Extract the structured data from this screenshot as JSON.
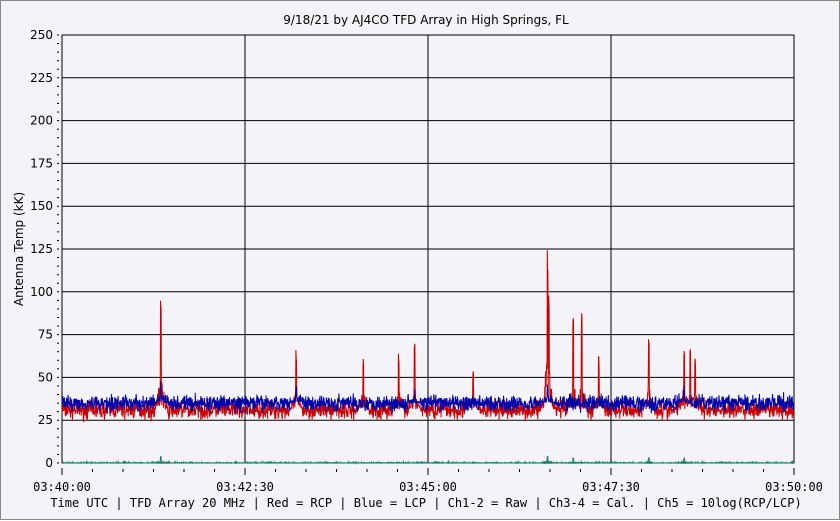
{
  "chart_data": {
    "type": "line",
    "title": "9/18/21  by  AJ4CO TFD Array  in  High Springs, FL",
    "xlabel": "Time UTC | TFD Array 20 MHz | Red = RCP | Blue = LCP | Ch1-2 = Raw | Ch3-4 = Cal. | Ch5 = 10log(RCP/LCP)",
    "ylabel": "Antenna Temp (kK)",
    "ylim": [
      0,
      250
    ],
    "yticks": [
      "0",
      "25",
      "50",
      "75",
      "100",
      "125",
      "150",
      "175",
      "200",
      "225",
      "250"
    ],
    "xlim_seconds": [
      0,
      600
    ],
    "xticks": [
      "03:40:00",
      "03:42:30",
      "03:45:00",
      "03:47:30",
      "03:50:00"
    ],
    "grid": true,
    "series": [
      {
        "name": "RCP",
        "color": "#cc0000",
        "baseline": 31,
        "noise": 4,
        "spikes": [
          [
            81,
            96
          ],
          [
            192,
            68
          ],
          [
            247,
            64
          ],
          [
            276,
            65
          ],
          [
            289,
            70
          ],
          [
            337,
            55
          ],
          [
            398,
            129
          ],
          [
            399,
            100
          ],
          [
            419,
            85
          ],
          [
            426,
            88
          ],
          [
            440,
            65
          ],
          [
            481,
            78
          ],
          [
            510,
            72
          ],
          [
            515,
            70
          ],
          [
            519,
            65
          ]
        ]
      },
      {
        "name": "LCP",
        "color": "#0000aa",
        "baseline": 35,
        "noise": 3.5,
        "spikes": [
          [
            81,
            48
          ],
          [
            192,
            45
          ],
          [
            289,
            44
          ],
          [
            398,
            48
          ],
          [
            510,
            45
          ]
        ]
      },
      {
        "name": "10log(RCP/LCP)",
        "color": "#208070",
        "baseline": 0,
        "noise": 0.6,
        "spikes": [
          [
            81,
            4
          ],
          [
            398,
            4
          ],
          [
            419,
            3
          ],
          [
            481,
            3
          ],
          [
            510,
            3
          ]
        ]
      }
    ]
  }
}
